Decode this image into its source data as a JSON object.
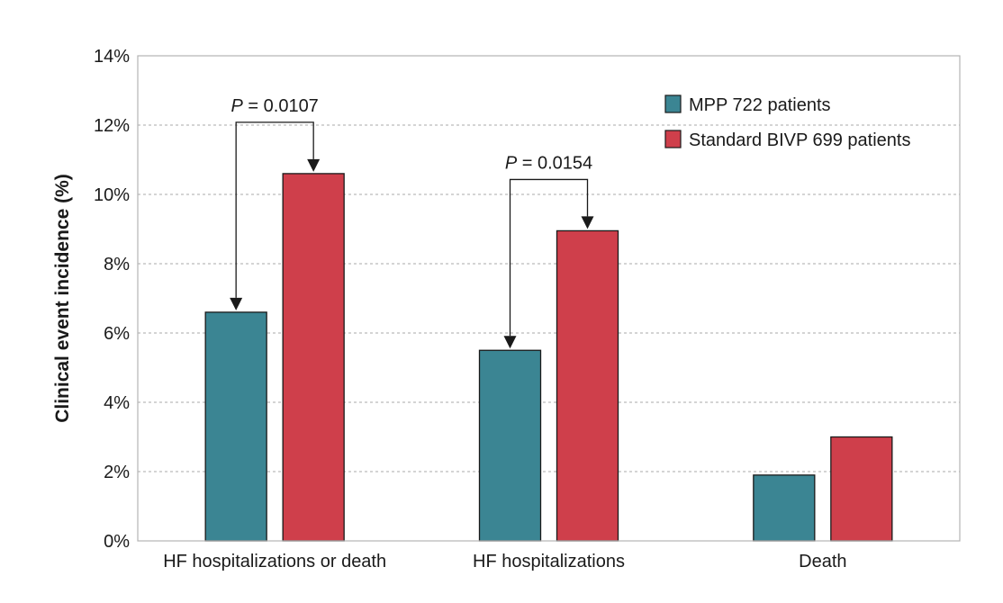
{
  "chart_data": {
    "type": "bar",
    "title": "",
    "xlabel": "",
    "ylabel": "Clinical event incidence (%)",
    "ylim": [
      0,
      14
    ],
    "yticks": [
      0,
      2,
      4,
      6,
      8,
      10,
      12,
      14
    ],
    "ytick_labels": [
      "0%",
      "2%",
      "4%",
      "6%",
      "8%",
      "10%",
      "12%",
      "14%"
    ],
    "grid": "horizontal-dashed",
    "legend_position": "top-right",
    "categories": [
      "HF hospitalizations or death",
      "HF hospitalizations",
      "Death"
    ],
    "series": [
      {
        "name": "MPP 722 patients",
        "color": "#3b8593",
        "values": [
          6.6,
          5.5,
          1.9
        ]
      },
      {
        "name": "Standard BIVP 699 patients",
        "color": "#cf3f4b",
        "values": [
          10.6,
          8.95,
          3.0
        ]
      }
    ],
    "annotations": [
      {
        "category_index": 0,
        "italic": "P",
        "text": " = 0.0107"
      },
      {
        "category_index": 1,
        "italic": "P",
        "text": " = 0.0154"
      }
    ]
  }
}
